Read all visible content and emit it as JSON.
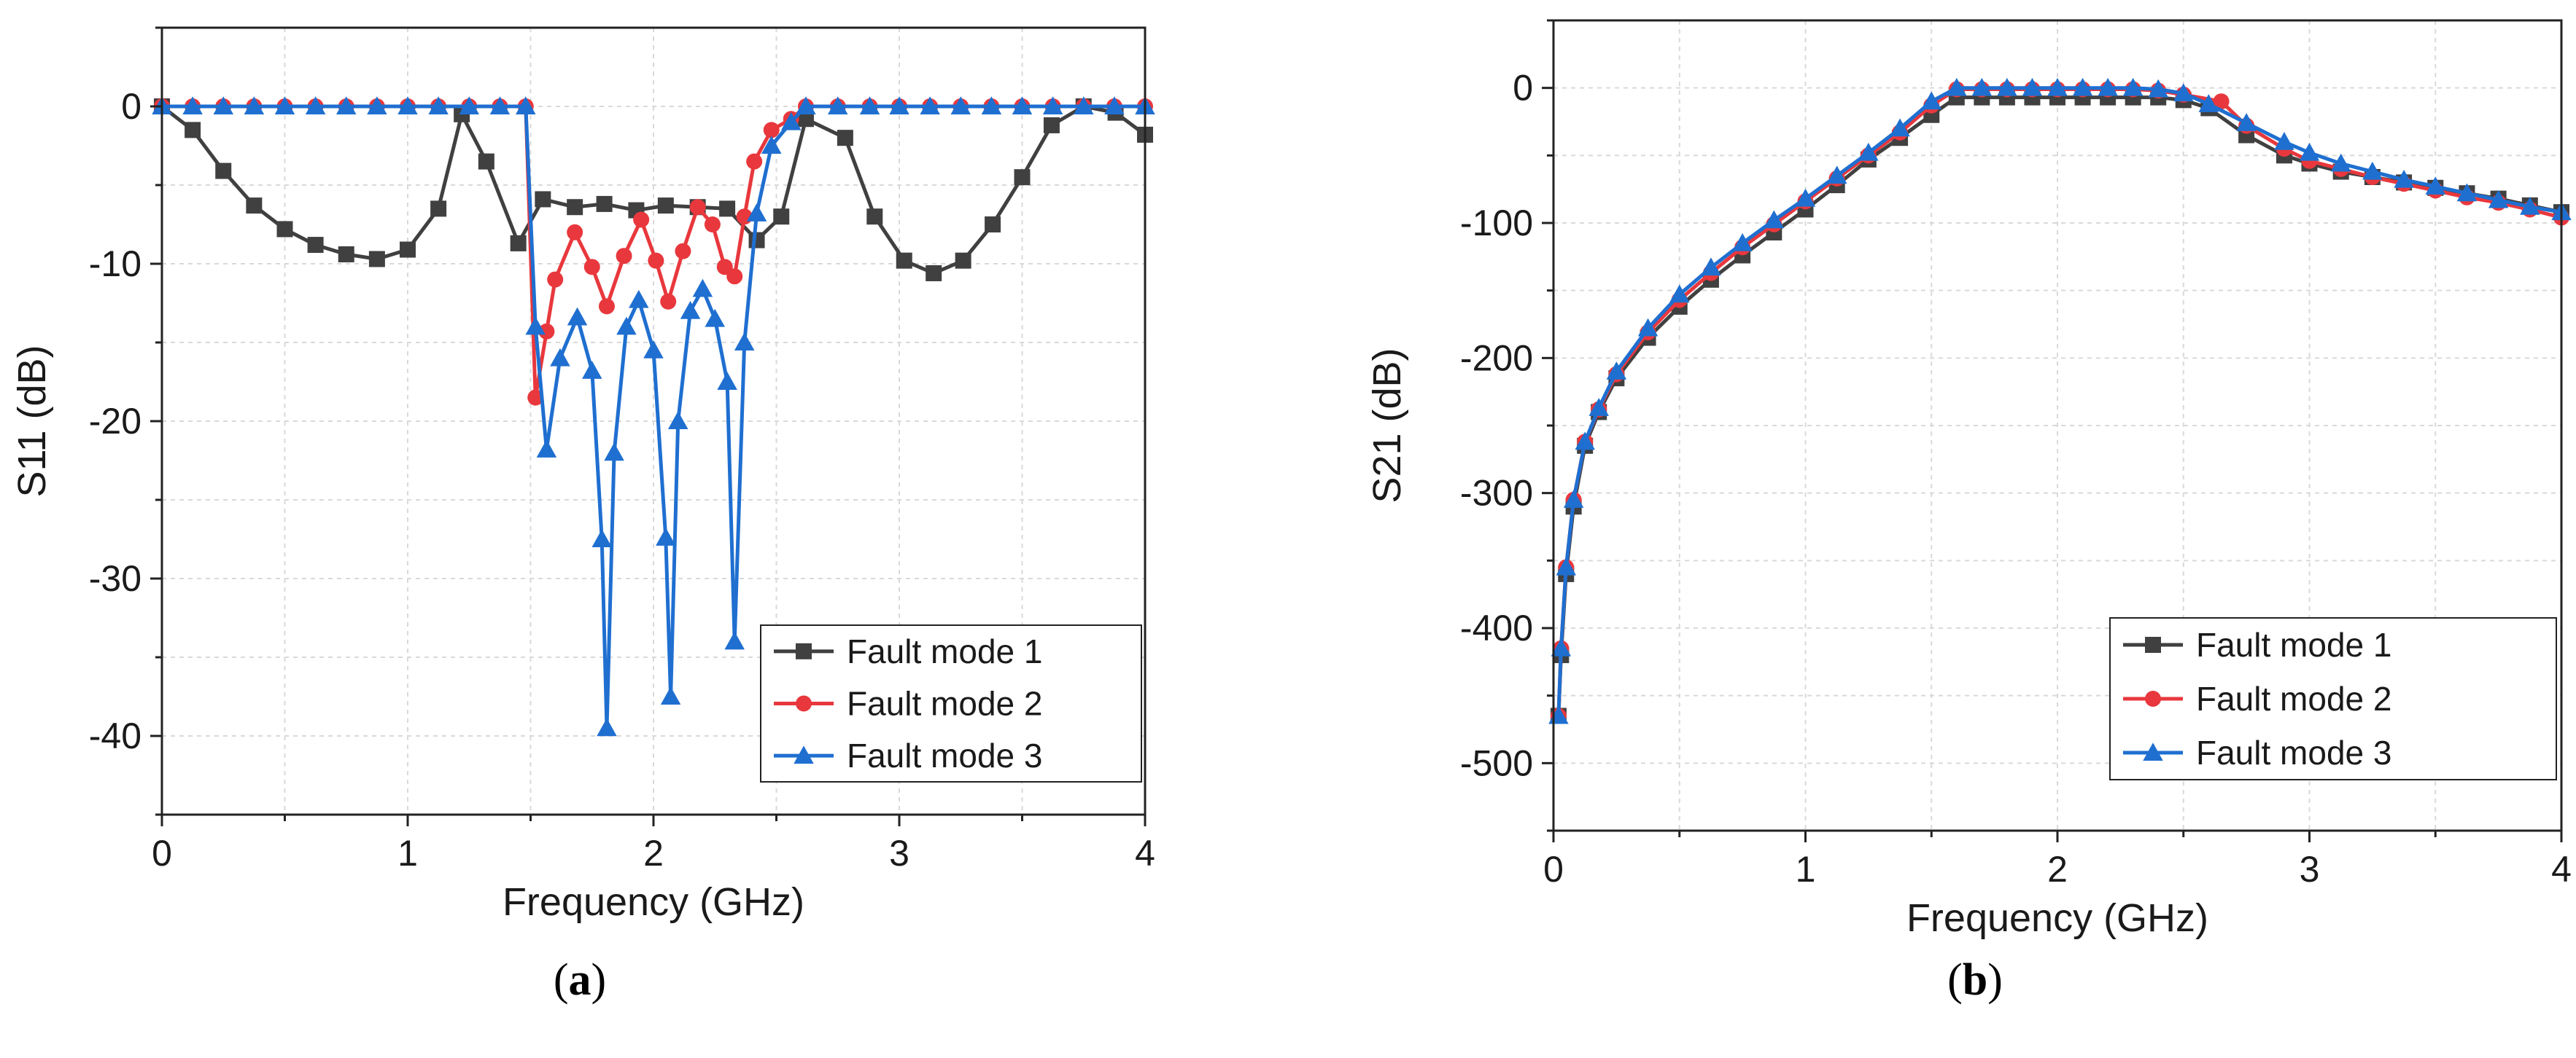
{
  "chart_data": [
    {
      "type": "line",
      "panel": "a",
      "caption_open": "(",
      "caption_letter": "a",
      "caption_close": ")",
      "xlabel": "Frequency (GHz)",
      "ylabel": "S11 (dB)",
      "xlim": [
        0,
        4
      ],
      "ylim": [
        -45,
        5
      ],
      "xticks": [
        0,
        1,
        2,
        3,
        4
      ],
      "yticks": [
        0,
        -10,
        -20,
        -30,
        -40
      ],
      "grid": true,
      "legend_position": "bottom-right",
      "series": [
        {
          "name": "Fault mode 1",
          "color": "#404040",
          "marker": "square",
          "x": [
            0,
            0.125,
            0.25,
            0.375,
            0.5,
            0.625,
            0.75,
            0.875,
            1.0,
            1.125,
            1.22,
            1.32,
            1.45,
            1.55,
            1.68,
            1.8,
            1.93,
            2.05,
            2.18,
            2.3,
            2.42,
            2.52,
            2.62,
            2.78,
            2.9,
            3.02,
            3.14,
            3.26,
            3.38,
            3.5,
            3.62,
            3.75,
            3.88,
            4.0
          ],
          "y": [
            0,
            -1.5,
            -4.1,
            -6.3,
            -7.8,
            -8.8,
            -9.4,
            -9.7,
            -9.1,
            -6.5,
            -0.5,
            -3.5,
            -8.7,
            -5.9,
            -6.4,
            -6.2,
            -6.6,
            -6.3,
            -6.4,
            -6.5,
            -8.5,
            -7.0,
            -0.8,
            -2.0,
            -7.0,
            -9.8,
            -10.6,
            -9.8,
            -7.5,
            -4.5,
            -1.2,
            0,
            -0.4,
            -1.8
          ]
        },
        {
          "name": "Fault mode 2",
          "color": "#e8383d",
          "marker": "circle",
          "x": [
            0,
            0.125,
            0.25,
            0.375,
            0.5,
            0.625,
            0.75,
            0.875,
            1.0,
            1.125,
            1.25,
            1.375,
            1.48,
            1.52,
            1.565,
            1.6,
            1.68,
            1.75,
            1.81,
            1.88,
            1.95,
            2.01,
            2.06,
            2.12,
            2.18,
            2.24,
            2.29,
            2.33,
            2.37,
            2.41,
            2.48,
            2.56,
            2.62,
            2.75,
            2.88,
            3.0,
            3.125,
            3.25,
            3.375,
            3.5,
            3.625,
            3.75,
            3.875,
            4.0
          ],
          "y": [
            0,
            0,
            0,
            0,
            0,
            0,
            0,
            0,
            0,
            0,
            0,
            0,
            0,
            -18.5,
            -14.3,
            -11.0,
            -8.0,
            -10.2,
            -12.7,
            -9.5,
            -7.2,
            -9.8,
            -12.4,
            -9.2,
            -6.4,
            -7.5,
            -10.2,
            -10.8,
            -7.0,
            -3.5,
            -1.5,
            -0.8,
            0,
            0,
            0,
            0,
            0,
            0,
            0,
            0,
            0,
            0,
            0,
            0
          ]
        },
        {
          "name": "Fault mode 3",
          "color": "#1f6fd0",
          "marker": "triangle",
          "x": [
            0,
            0.125,
            0.25,
            0.375,
            0.5,
            0.625,
            0.75,
            0.875,
            1.0,
            1.125,
            1.25,
            1.375,
            1.48,
            1.52,
            1.565,
            1.62,
            1.69,
            1.75,
            1.79,
            1.81,
            1.84,
            1.89,
            1.94,
            2.0,
            2.05,
            2.07,
            2.1,
            2.15,
            2.2,
            2.25,
            2.3,
            2.33,
            2.37,
            2.42,
            2.48,
            2.56,
            2.62,
            2.75,
            2.88,
            3.0,
            3.125,
            3.25,
            3.375,
            3.5,
            3.625,
            3.75,
            3.875,
            4.0
          ],
          "y": [
            0,
            0,
            0,
            0,
            0,
            0,
            0,
            0,
            0,
            0,
            0,
            0,
            0,
            -14.0,
            -21.8,
            -16.0,
            -13.4,
            -16.8,
            -27.5,
            -39.5,
            -22.0,
            -14.0,
            -12.3,
            -15.5,
            -27.4,
            -37.5,
            -20.0,
            -13.0,
            -11.6,
            -13.5,
            -17.5,
            -34.0,
            -15.0,
            -6.8,
            -2.5,
            -1.0,
            0,
            0,
            0,
            0,
            0,
            0,
            0,
            0,
            0,
            0,
            0,
            0
          ]
        }
      ]
    },
    {
      "type": "line",
      "panel": "b",
      "caption_open": "(",
      "caption_letter": "b",
      "caption_close": ")",
      "xlabel": "Frequency (GHz)",
      "ylabel": "S21 (dB)",
      "xlim": [
        0,
        4
      ],
      "ylim": [
        -550,
        50
      ],
      "xticks": [
        0,
        1,
        2,
        3,
        4
      ],
      "yticks": [
        0,
        -100,
        -200,
        -300,
        -400,
        -500
      ],
      "grid": true,
      "legend_position": "bottom-right",
      "series": [
        {
          "name": "Fault mode 1",
          "color": "#404040",
          "marker": "square",
          "x": [
            0.02,
            0.03,
            0.05,
            0.08,
            0.125,
            0.18,
            0.25,
            0.375,
            0.5,
            0.625,
            0.75,
            0.875,
            1.0,
            1.125,
            1.25,
            1.375,
            1.5,
            1.6,
            1.7,
            1.8,
            1.9,
            2.0,
            2.1,
            2.2,
            2.3,
            2.4,
            2.5,
            2.6,
            2.75,
            2.9,
            3.0,
            3.125,
            3.25,
            3.375,
            3.5,
            3.625,
            3.75,
            3.875,
            4.0
          ],
          "y": [
            -465,
            -420,
            -360,
            -310,
            -265,
            -240,
            -215,
            -185,
            -162,
            -142,
            -124,
            -107,
            -90,
            -72,
            -53,
            -37,
            -20,
            -7,
            -7,
            -7,
            -7,
            -7,
            -7,
            -7,
            -7,
            -7,
            -9,
            -15,
            -35,
            -50,
            -56,
            -62,
            -66,
            -70,
            -74,
            -78,
            -82,
            -87,
            -92
          ]
        },
        {
          "name": "Fault mode 2",
          "color": "#e8383d",
          "marker": "circle",
          "x": [
            0.02,
            0.03,
            0.05,
            0.08,
            0.125,
            0.18,
            0.25,
            0.375,
            0.5,
            0.625,
            0.75,
            0.875,
            1.0,
            1.125,
            1.25,
            1.375,
            1.5,
            1.6,
            1.7,
            1.8,
            1.9,
            2.0,
            2.1,
            2.2,
            2.3,
            2.4,
            2.5,
            2.65,
            2.75,
            2.9,
            3.0,
            3.125,
            3.25,
            3.375,
            3.5,
            3.625,
            3.75,
            3.875,
            4.0
          ],
          "y": [
            -465,
            -415,
            -355,
            -305,
            -262,
            -238,
            -212,
            -181,
            -157,
            -137,
            -118,
            -101,
            -84,
            -67,
            -50,
            -33,
            -13,
            -1,
            -1,
            -1,
            -1,
            -1,
            -1,
            -1,
            -1,
            -2,
            -5,
            -10,
            -28,
            -45,
            -54,
            -60,
            -66,
            -71,
            -76,
            -81,
            -85,
            -90,
            -96
          ]
        },
        {
          "name": "Fault mode 3",
          "color": "#1f6fd0",
          "marker": "triangle",
          "x": [
            0.02,
            0.03,
            0.05,
            0.08,
            0.125,
            0.18,
            0.25,
            0.375,
            0.5,
            0.625,
            0.75,
            0.875,
            1.0,
            1.125,
            1.25,
            1.375,
            1.5,
            1.6,
            1.7,
            1.8,
            1.9,
            2.0,
            2.1,
            2.2,
            2.3,
            2.4,
            2.5,
            2.6,
            2.75,
            2.9,
            3.0,
            3.125,
            3.25,
            3.375,
            3.5,
            3.625,
            3.75,
            3.875,
            4.0
          ],
          "y": [
            -465,
            -415,
            -355,
            -305,
            -262,
            -237,
            -210,
            -178,
            -153,
            -133,
            -115,
            -98,
            -82,
            -65,
            -48,
            -30,
            -10,
            0,
            0,
            0,
            0,
            0,
            0,
            0,
            0,
            -1,
            -4,
            -12,
            -26,
            -40,
            -48,
            -56,
            -62,
            -68,
            -73,
            -78,
            -83,
            -88,
            -92
          ]
        }
      ]
    }
  ]
}
